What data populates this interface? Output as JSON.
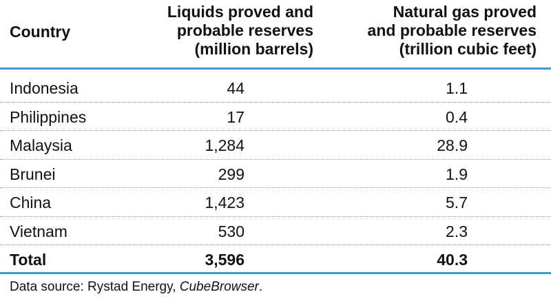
{
  "headers": {
    "country": "Country",
    "liquids": [
      "Liquids proved and",
      "probable reserves",
      "(million barrels)"
    ],
    "gas": [
      "Natural gas proved",
      "and probable reserves",
      "(trillion cubic feet)"
    ]
  },
  "rows": [
    {
      "country": "Indonesia",
      "liquids": "44",
      "gas": "1.1"
    },
    {
      "country": "Philippines",
      "liquids": "17",
      "gas": "0.4"
    },
    {
      "country": "Malaysia",
      "liquids": "1,284",
      "gas": "28.9"
    },
    {
      "country": "Brunei",
      "liquids": "299",
      "gas": "1.9"
    },
    {
      "country": "China",
      "liquids": "1,423",
      "gas": "5.7"
    },
    {
      "country": "Vietnam",
      "liquids": "530",
      "gas": "2.3"
    }
  ],
  "total": {
    "label": "Total",
    "liquids": "3,596",
    "gas": "40.3"
  },
  "source": {
    "prefix": "Data source: Rystad Energy, ",
    "italic": "CubeBrowser",
    "suffix": "."
  },
  "colors": {
    "rule": "#3f9ad6",
    "dotted": "#9a9a9a"
  }
}
